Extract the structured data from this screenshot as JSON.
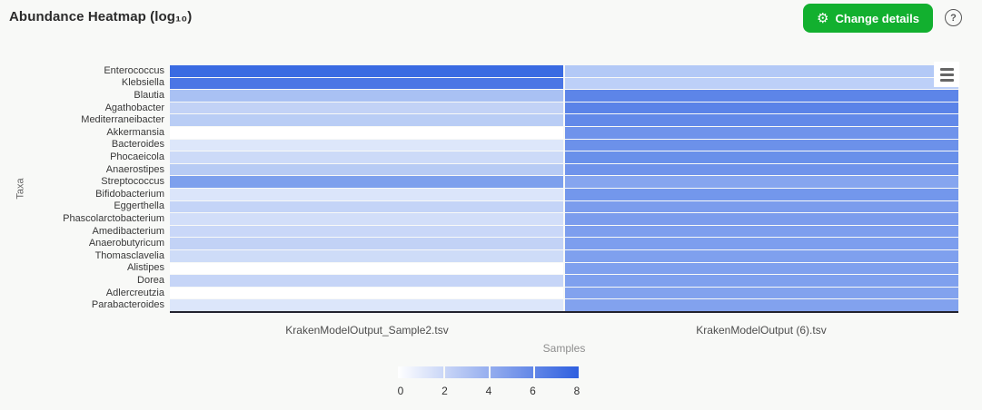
{
  "header": {
    "title": "Abundance Heatmap (log₁₀)",
    "change_details_label": "Change details"
  },
  "icons": {
    "gear": "⚙",
    "help": "?",
    "context_menu": "hamburger-three-bars"
  },
  "colors": {
    "accent_green": "#12b02f",
    "page_background": "#f8f9f7",
    "axis_line": "#23232e",
    "legend_min": "#ffffff",
    "legend_max": "#2e5fdf"
  },
  "chart_data": {
    "type": "heatmap",
    "title": "Abundance Heatmap (log₁₀)",
    "ylabel": "Taxa",
    "xlabel": "Samples",
    "legend_position": "bottom",
    "columns": [
      "KrakenModelOutput_Sample2.tsv",
      "KrakenModelOutput (6).tsv"
    ],
    "rows": [
      "Enterococcus",
      "Klebsiella",
      "Blautia",
      "Agathobacter",
      "Mediterraneibacter",
      "Akkermansia",
      "Bacteroides",
      "Phocaeicola",
      "Anaerostipes",
      "Streptococcus",
      "Bifidobacterium",
      "Eggerthella",
      "Phascolarctobacterium",
      "Amedibacterium",
      "Anaerobutyricum",
      "Thomasclavelia",
      "Alistipes",
      "Dorea",
      "Adlercreutzia",
      "Parabacteroides"
    ],
    "values": [
      [
        7.5,
        2.9
      ],
      [
        6.9,
        2.5
      ],
      [
        3.3,
        6.2
      ],
      [
        2.3,
        6.3
      ],
      [
        2.7,
        6.0
      ],
      [
        0.0,
        5.5
      ],
      [
        1.3,
        5.6
      ],
      [
        2.0,
        5.7
      ],
      [
        2.8,
        5.5
      ],
      [
        5.0,
        4.6
      ],
      [
        1.4,
        5.4
      ],
      [
        2.3,
        5.1
      ],
      [
        1.7,
        5.1
      ],
      [
        2.1,
        5.0
      ],
      [
        2.3,
        5.0
      ],
      [
        1.9,
        4.9
      ],
      [
        0.0,
        4.9
      ],
      [
        2.2,
        4.9
      ],
      [
        0.0,
        4.8
      ],
      [
        1.3,
        4.8
      ]
    ],
    "cell_colors": [
      [
        "#3a6be2",
        "#b3c9f6"
      ],
      [
        "#4b76e5",
        "#bdd0f8"
      ],
      [
        "#a9c1f3",
        "#5d85e8"
      ],
      [
        "#c2d2f6",
        "#5a83e8"
      ],
      [
        "#b9cdf5",
        "#6289e9"
      ],
      [
        "#ffffff",
        "#6f93eb"
      ],
      [
        "#dde7fa",
        "#6c91ea"
      ],
      [
        "#ccdaf8",
        "#6990ea"
      ],
      [
        "#b7cbf4",
        "#6f93eb"
      ],
      [
        "#7da0ed",
        "#86a5ef"
      ],
      [
        "#dbe5fa",
        "#7397ec"
      ],
      [
        "#c4d4f7",
        "#7b9ced"
      ],
      [
        "#d2def9",
        "#7b9ced"
      ],
      [
        "#c9d7f8",
        "#7d9eee"
      ],
      [
        "#c2d2f6",
        "#7d9eee"
      ],
      [
        "#cedcf8",
        "#7fa0ee"
      ],
      [
        "#ffffff",
        "#7fa0ee"
      ],
      [
        "#c6d5f7",
        "#7fa0ee"
      ],
      [
        "#ffffff",
        "#82a2ee"
      ],
      [
        "#dce6fa",
        "#82a2ee"
      ]
    ],
    "colorbar": {
      "min": 0,
      "max": 8,
      "ticks": [
        0,
        2,
        4,
        6,
        8
      ],
      "min_color": "#ffffff",
      "max_color": "#2e5fdf"
    }
  }
}
